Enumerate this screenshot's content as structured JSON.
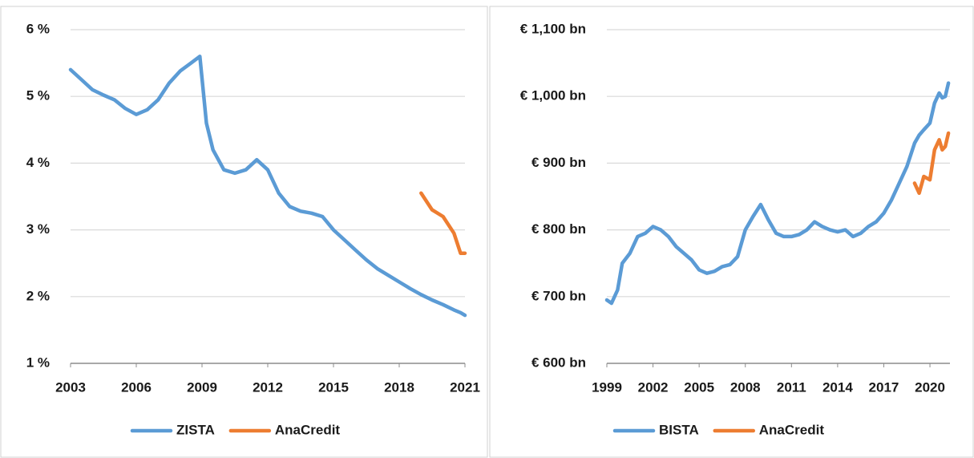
{
  "chart_data": [
    {
      "type": "line",
      "x": [
        2003,
        2003.5,
        2004,
        2004.5,
        2005,
        2005.5,
        2006,
        2006.5,
        2007,
        2007.5,
        2008,
        2008.5,
        2008.9,
        2009.2,
        2009.5,
        2010,
        2010.5,
        2011,
        2011.5,
        2012,
        2012.5,
        2013,
        2013.5,
        2014,
        2014.5,
        2015,
        2015.5,
        2016,
        2016.5,
        2017,
        2017.5,
        2018,
        2018.5,
        2019,
        2019.5,
        2020,
        2020.5,
        2020.8,
        2021
      ],
      "series": [
        {
          "name": "ZISTA",
          "color": "#5b9bd5",
          "values": [
            5.4,
            5.25,
            5.1,
            5.02,
            4.95,
            4.82,
            4.73,
            4.8,
            4.95,
            5.2,
            5.38,
            5.5,
            5.6,
            4.6,
            4.2,
            3.9,
            3.85,
            3.9,
            4.05,
            3.9,
            3.55,
            3.35,
            3.28,
            3.25,
            3.2,
            3.0,
            2.85,
            2.7,
            2.55,
            2.42,
            2.32,
            2.22,
            2.12,
            2.03,
            1.95,
            1.88,
            1.8,
            1.76,
            1.72
          ]
        },
        {
          "name": "AnaCredit",
          "color": "#ed7d31",
          "values": [
            null,
            null,
            null,
            null,
            null,
            null,
            null,
            null,
            null,
            null,
            null,
            null,
            null,
            null,
            null,
            null,
            null,
            null,
            null,
            null,
            null,
            null,
            null,
            null,
            null,
            null,
            null,
            null,
            null,
            null,
            null,
            null,
            null,
            3.55,
            3.3,
            3.2,
            2.95,
            2.65,
            2.65
          ]
        }
      ],
      "xlim": [
        2003,
        2021
      ],
      "xticks": [
        2003,
        2006,
        2009,
        2012,
        2015,
        2018,
        2021
      ],
      "ylim": [
        1,
        6
      ],
      "yticks": [
        {
          "value": 1,
          "label": "1 %"
        },
        {
          "value": 2,
          "label": "2 %"
        },
        {
          "value": 3,
          "label": "3 %"
        },
        {
          "value": 4,
          "label": "4 %"
        },
        {
          "value": 5,
          "label": "5 %"
        },
        {
          "value": 6,
          "label": "6 %"
        }
      ],
      "grid": true,
      "legend": "bottom"
    },
    {
      "type": "line",
      "x": [
        1999,
        1999.3,
        1999.7,
        2000,
        2000.5,
        2001,
        2001.5,
        2002,
        2002.5,
        2003,
        2003.5,
        2004,
        2004.5,
        2005,
        2005.5,
        2006,
        2006.5,
        2007,
        2007.5,
        2008,
        2008.5,
        2009,
        2009.5,
        2010,
        2010.5,
        2011,
        2011.5,
        2012,
        2012.5,
        2013,
        2013.5,
        2014,
        2014.5,
        2015,
        2015.5,
        2016,
        2016.5,
        2017,
        2017.5,
        2018,
        2018.5,
        2019,
        2019.3,
        2019.6,
        2020,
        2020.3,
        2020.6,
        2020.8,
        2021,
        2021.2
      ],
      "series": [
        {
          "name": "BISTA",
          "color": "#5b9bd5",
          "values": [
            695,
            690,
            710,
            750,
            765,
            790,
            795,
            805,
            800,
            790,
            775,
            765,
            755,
            740,
            735,
            738,
            745,
            748,
            760,
            800,
            820,
            838,
            815,
            795,
            790,
            790,
            793,
            800,
            812,
            805,
            800,
            797,
            800,
            790,
            795,
            805,
            812,
            825,
            845,
            870,
            895,
            930,
            942,
            950,
            960,
            990,
            1005,
            998,
            1000,
            1020
          ]
        },
        {
          "name": "AnaCredit",
          "color": "#ed7d31",
          "values": [
            null,
            null,
            null,
            null,
            null,
            null,
            null,
            null,
            null,
            null,
            null,
            null,
            null,
            null,
            null,
            null,
            null,
            null,
            null,
            null,
            null,
            null,
            null,
            null,
            null,
            null,
            null,
            null,
            null,
            null,
            null,
            null,
            null,
            null,
            null,
            null,
            null,
            null,
            null,
            null,
            null,
            870,
            855,
            880,
            875,
            920,
            935,
            920,
            925,
            945
          ]
        }
      ],
      "xlim": [
        1999,
        2021.3
      ],
      "xticks": [
        1999,
        2002,
        2005,
        2008,
        2011,
        2014,
        2017,
        2020
      ],
      "ylim": [
        600,
        1100
      ],
      "yticks": [
        {
          "value": 600,
          "label": "€ 600 bn"
        },
        {
          "value": 700,
          "label": "€ 700 bn"
        },
        {
          "value": 800,
          "label": "€ 800 bn"
        },
        {
          "value": 900,
          "label": "€ 900 bn"
        },
        {
          "value": 1000,
          "label": "€ 1,000 bn"
        },
        {
          "value": 1100,
          "label": "€ 1,100 bn"
        }
      ],
      "grid": true,
      "legend": "bottom"
    }
  ]
}
